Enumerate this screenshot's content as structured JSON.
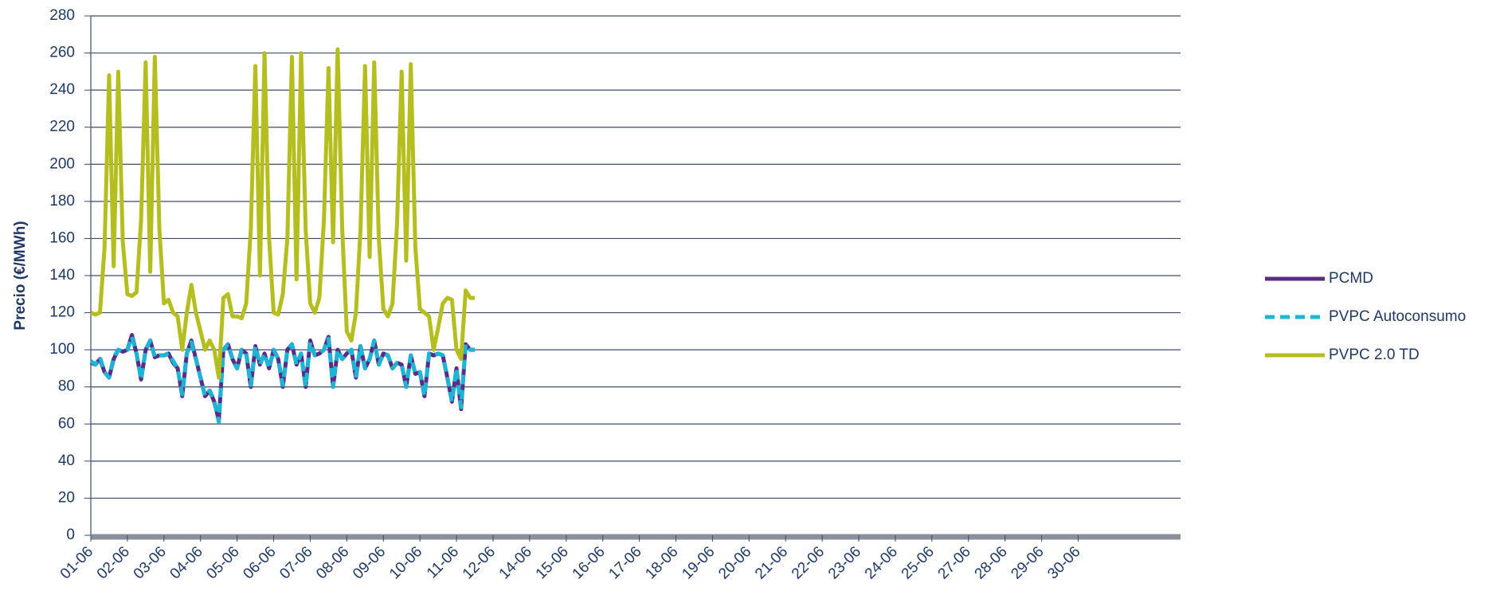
{
  "chart_data": {
    "type": "line",
    "y_label": "Precio (€/MWh)",
    "x": [
      0,
      0.125,
      0.25,
      0.375,
      0.5,
      0.625,
      0.75,
      0.875,
      1,
      1.125,
      1.25,
      1.375,
      1.5,
      1.625,
      1.75,
      1.875,
      2,
      2.125,
      2.25,
      2.375,
      2.5,
      2.625,
      2.75,
      2.875,
      3,
      3.125,
      3.25,
      3.375,
      3.5,
      3.625,
      3.75,
      3.875,
      4,
      4.125,
      4.25,
      4.375,
      4.5,
      4.625,
      4.75,
      4.875,
      5,
      5.125,
      5.25,
      5.375,
      5.5,
      5.625,
      5.75,
      5.875,
      6,
      6.125,
      6.25,
      6.375,
      6.5,
      6.625,
      6.75,
      6.875,
      7,
      7.125,
      7.25,
      7.375,
      7.5,
      7.625,
      7.75,
      7.875,
      8,
      8.125,
      8.25,
      8.375,
      8.5,
      8.625,
      8.75,
      8.875,
      9,
      9.125,
      9.25,
      9.375,
      9.5,
      9.625,
      9.75,
      9.875,
      10,
      10.125,
      10.25,
      10.375,
      10.5
    ],
    "series": [
      {
        "name": "PCMD",
        "color": "#5b2c83",
        "dash": false,
        "values": [
          93,
          92,
          95,
          88,
          85,
          95,
          100,
          99,
          100,
          108,
          98,
          84,
          100,
          105,
          96,
          97,
          97,
          98,
          93,
          90,
          75,
          98,
          105,
          95,
          85,
          75,
          78,
          72,
          62,
          100,
          103,
          95,
          90,
          100,
          98,
          80,
          102,
          92,
          98,
          90,
          100,
          95,
          80,
          100,
          103,
          92,
          98,
          80,
          105,
          97,
          98,
          100,
          107,
          80,
          100,
          95,
          98,
          100,
          85,
          102,
          90,
          95,
          105,
          92,
          98,
          97,
          90,
          93,
          92,
          80,
          97,
          87,
          88,
          75,
          98,
          97,
          98,
          97,
          85,
          72,
          90,
          68,
          103,
          100,
          100
        ]
      },
      {
        "name": "PVPC Autoconsumo",
        "color": "#1cb5d6",
        "dash": true,
        "values": [
          94,
          92,
          96,
          88,
          85,
          96,
          100,
          99,
          100,
          107,
          98,
          84,
          100,
          105,
          96,
          97,
          97,
          98,
          94,
          90,
          76,
          98,
          104,
          95,
          85,
          75,
          78,
          73,
          61,
          100,
          103,
          95,
          90,
          100,
          98,
          81,
          102,
          92,
          98,
          90,
          100,
          95,
          81,
          100,
          103,
          92,
          98,
          80,
          104,
          97,
          98,
          100,
          106,
          80,
          100,
          95,
          98,
          100,
          86,
          102,
          90,
          95,
          105,
          92,
          98,
          97,
          90,
          93,
          92,
          80,
          97,
          87,
          88,
          75,
          98,
          97,
          98,
          97,
          85,
          72,
          90,
          69,
          103,
          100,
          100
        ]
      },
      {
        "name": "PVPC 2.0 TD",
        "color": "#b5be1f",
        "dash": false,
        "values": [
          120,
          119,
          120,
          155,
          248,
          145,
          250,
          158,
          130,
          129,
          131,
          170,
          255,
          142,
          258,
          165,
          125,
          127,
          120,
          118,
          100,
          120,
          135,
          120,
          110,
          100,
          105,
          100,
          85,
          128,
          130,
          118,
          118,
          117,
          125,
          165,
          253,
          140,
          260,
          160,
          120,
          119,
          130,
          160,
          258,
          138,
          260,
          165,
          125,
          120,
          128,
          170,
          252,
          158,
          262,
          165,
          110,
          105,
          120,
          165,
          253,
          150,
          255,
          160,
          122,
          118,
          125,
          168,
          250,
          148,
          254,
          155,
          122,
          120,
          118,
          100,
          112,
          125,
          128,
          127,
          100,
          95,
          132,
          128,
          128
        ]
      }
    ],
    "xlim": [
      0,
      29.8
    ],
    "xticks": [
      {
        "value": 0,
        "label": "01-06"
      },
      {
        "value": 1,
        "label": "02-06"
      },
      {
        "value": 2,
        "label": "03-06"
      },
      {
        "value": 3,
        "label": "04-06"
      },
      {
        "value": 4,
        "label": "05-06"
      },
      {
        "value": 5,
        "label": "06-06"
      },
      {
        "value": 6,
        "label": "07-06"
      },
      {
        "value": 7,
        "label": "08-06"
      },
      {
        "value": 8,
        "label": "09-06"
      },
      {
        "value": 9,
        "label": "10-06"
      },
      {
        "value": 10,
        "label": "11-06"
      },
      {
        "value": 11,
        "label": "12-06"
      },
      {
        "value": 12,
        "label": "14-06"
      },
      {
        "value": 13,
        "label": "15-06"
      },
      {
        "value": 14,
        "label": "16-06"
      },
      {
        "value": 15,
        "label": "17-06"
      },
      {
        "value": 16,
        "label": "18-06"
      },
      {
        "value": 17,
        "label": "19-06"
      },
      {
        "value": 18,
        "label": "20-06"
      },
      {
        "value": 19,
        "label": "21-06"
      },
      {
        "value": 20,
        "label": "22-06"
      },
      {
        "value": 21,
        "label": "23-06"
      },
      {
        "value": 22,
        "label": "24-06"
      },
      {
        "value": 23,
        "label": "25-06"
      },
      {
        "value": 24,
        "label": "27-06"
      },
      {
        "value": 25,
        "label": "28-06"
      },
      {
        "value": 26,
        "label": "29-06"
      },
      {
        "value": 27,
        "label": "30-06"
      }
    ],
    "ylim": [
      0,
      280
    ],
    "yticks": [
      0,
      20,
      40,
      60,
      80,
      100,
      120,
      140,
      160,
      180,
      200,
      220,
      240,
      260,
      280
    ],
    "grid": true,
    "legend": "right"
  }
}
